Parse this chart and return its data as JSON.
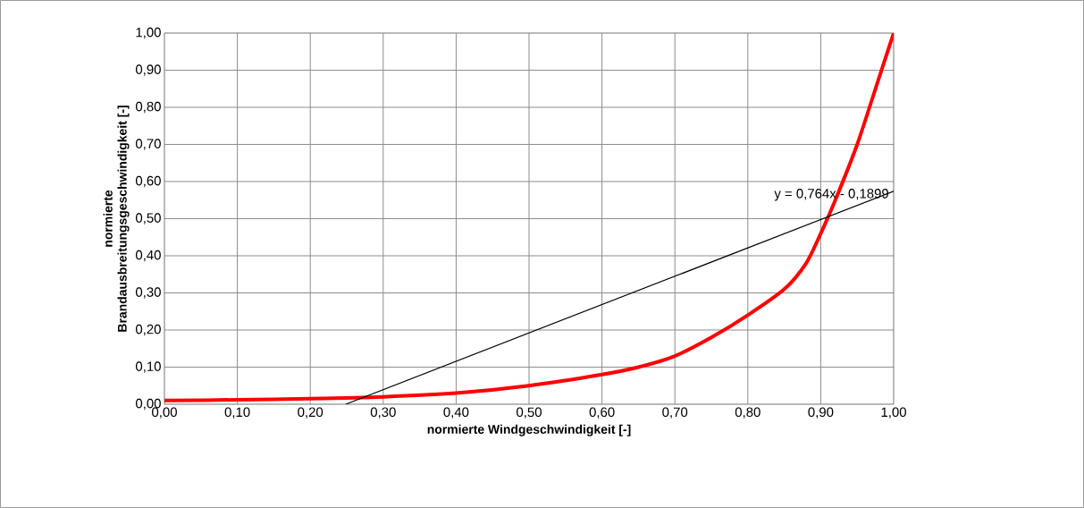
{
  "chart_data": {
    "type": "line",
    "xlabel": "normierte Windgeschwindigkeit [-]",
    "ylabel": "normierte\nBrandausbreitungsgeschwindigkeit [-]",
    "series": [
      {
        "color": "#ff0000",
        "x": [
          0,
          0.1,
          0.2,
          0.3,
          0.4,
          0.5,
          0.6,
          0.65,
          0.7,
          0.75,
          0.8,
          0.85,
          0.88,
          0.9,
          0.92,
          0.95,
          0.98,
          1.0
        ],
        "values": [
          0.01,
          0.012,
          0.015,
          0.02,
          0.03,
          0.05,
          0.08,
          0.1,
          0.13,
          0.18,
          0.24,
          0.31,
          0.38,
          0.46,
          0.55,
          0.7,
          0.88,
          1.0
        ]
      },
      {
        "color": "#000000",
        "x": [
          0.2486,
          1.0
        ],
        "values": [
          0,
          0.574
        ]
      }
    ],
    "annotations": [
      "y = 0,764x - 0,1899"
    ],
    "xlim": [
      0,
      1
    ],
    "ylim": [
      0,
      1
    ],
    "xticks": [
      {
        "value": 0,
        "label": "0,00"
      },
      {
        "value": 0.1,
        "label": "0,10"
      },
      {
        "value": 0.2,
        "label": "0,20"
      },
      {
        "value": 0.3,
        "label": "0,30"
      },
      {
        "value": 0.4,
        "label": "0,40"
      },
      {
        "value": 0.5,
        "label": "0,50"
      },
      {
        "value": 0.6,
        "label": "0,60"
      },
      {
        "value": 0.7,
        "label": "0,70"
      },
      {
        "value": 0.8,
        "label": "0,80"
      },
      {
        "value": 0.9,
        "label": "0,90"
      },
      {
        "value": 1,
        "label": "1,00"
      }
    ],
    "yticks": [
      {
        "value": 0,
        "label": "0,00"
      },
      {
        "value": 0.1,
        "label": "0,10"
      },
      {
        "value": 0.2,
        "label": "0,20"
      },
      {
        "value": 0.3,
        "label": "0,30"
      },
      {
        "value": 0.4,
        "label": "0,40"
      },
      {
        "value": 0.5,
        "label": "0,50"
      },
      {
        "value": 0.6,
        "label": "0,60"
      },
      {
        "value": 0.7,
        "label": "0,70"
      },
      {
        "value": 0.8,
        "label": "0,80"
      },
      {
        "value": 0.9,
        "label": "0,90"
      },
      {
        "value": 1,
        "label": "1,00"
      }
    ],
    "grid": true,
    "marker": "none",
    "line_style": "solid"
  }
}
